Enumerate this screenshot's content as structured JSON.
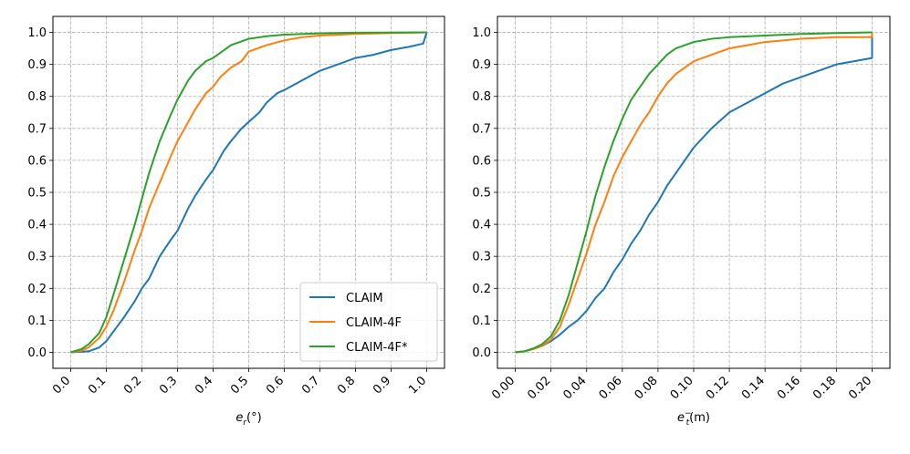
{
  "chart_data": [
    {
      "type": "line",
      "xlabel_base": "e",
      "xlabel_sub": "r",
      "xlabel_rest": "(°)",
      "xlim": [
        0.0,
        1.0
      ],
      "ylim": [
        0.0,
        1.0
      ],
      "grid": true,
      "grid_style": "dashed",
      "x_ticks": [
        "0.0",
        "0.1",
        "0.2",
        "0.3",
        "0.4",
        "0.5",
        "0.6",
        "0.7",
        "0.8",
        "0.9",
        "1.0"
      ],
      "y_ticks": [
        "0.0",
        "0.1",
        "0.2",
        "0.3",
        "0.4",
        "0.5",
        "0.6",
        "0.7",
        "0.8",
        "0.9",
        "1.0"
      ],
      "legend": {
        "placement": "lower-right",
        "entries": [
          "CLAIM",
          "CLAIM-4F",
          "CLAIM-4F*"
        ]
      },
      "series": [
        {
          "name": "CLAIM",
          "color": "#1f77b4",
          "x": [
            0,
            0.05,
            0.08,
            0.1,
            0.12,
            0.15,
            0.18,
            0.2,
            0.22,
            0.25,
            0.28,
            0.3,
            0.33,
            0.35,
            0.38,
            0.4,
            0.43,
            0.45,
            0.48,
            0.5,
            0.53,
            0.55,
            0.58,
            0.6,
            0.65,
            0.7,
            0.75,
            0.8,
            0.85,
            0.9,
            0.95,
            0.99,
            1.0
          ],
          "y": [
            0,
            0.003,
            0.015,
            0.035,
            0.065,
            0.11,
            0.16,
            0.2,
            0.23,
            0.3,
            0.35,
            0.38,
            0.45,
            0.49,
            0.54,
            0.57,
            0.63,
            0.66,
            0.7,
            0.72,
            0.75,
            0.78,
            0.81,
            0.82,
            0.85,
            0.88,
            0.9,
            0.92,
            0.93,
            0.945,
            0.955,
            0.965,
            1.0
          ]
        },
        {
          "name": "CLAIM-4F",
          "color": "#ff7f0e",
          "x": [
            0,
            0.03,
            0.05,
            0.08,
            0.1,
            0.12,
            0.15,
            0.18,
            0.2,
            0.22,
            0.25,
            0.28,
            0.3,
            0.33,
            0.35,
            0.38,
            0.4,
            0.42,
            0.45,
            0.48,
            0.5,
            0.55,
            0.6,
            0.65,
            0.7,
            0.8,
            0.9,
            1.0
          ],
          "y": [
            0,
            0.005,
            0.015,
            0.045,
            0.08,
            0.13,
            0.22,
            0.32,
            0.38,
            0.45,
            0.53,
            0.61,
            0.66,
            0.72,
            0.76,
            0.81,
            0.83,
            0.86,
            0.89,
            0.91,
            0.94,
            0.96,
            0.975,
            0.985,
            0.99,
            0.995,
            0.998,
            1.0
          ]
        },
        {
          "name": "CLAIM-4F*",
          "color": "#2ca02c",
          "x": [
            0,
            0.03,
            0.05,
            0.08,
            0.1,
            0.12,
            0.15,
            0.18,
            0.2,
            0.22,
            0.25,
            0.28,
            0.3,
            0.33,
            0.35,
            0.38,
            0.4,
            0.45,
            0.5,
            0.55,
            0.6,
            0.7,
            0.8,
            1.0
          ],
          "y": [
            0,
            0.01,
            0.025,
            0.06,
            0.11,
            0.18,
            0.29,
            0.4,
            0.48,
            0.56,
            0.66,
            0.74,
            0.79,
            0.85,
            0.88,
            0.91,
            0.92,
            0.96,
            0.98,
            0.988,
            0.993,
            0.997,
            0.999,
            1.0
          ]
        }
      ]
    },
    {
      "type": "line",
      "xlabel_base": "e",
      "xlabel_sub": "t",
      "xlabel_sup": "−",
      "xlabel_rest": "(m)",
      "xlim": [
        0.0,
        0.2
      ],
      "ylim": [
        0.0,
        1.0
      ],
      "grid": true,
      "grid_style": "dashed",
      "x_ticks": [
        "0.00",
        "0.02",
        "0.04",
        "0.06",
        "0.08",
        "0.10",
        "0.12",
        "0.14",
        "0.16",
        "0.18",
        "0.20"
      ],
      "y_ticks": [
        "0.0",
        "0.1",
        "0.2",
        "0.3",
        "0.4",
        "0.5",
        "0.6",
        "0.7",
        "0.8",
        "0.9",
        "1.0"
      ],
      "series": [
        {
          "name": "CLAIM",
          "color": "#1f77b4",
          "x": [
            0,
            0.005,
            0.01,
            0.015,
            0.02,
            0.025,
            0.03,
            0.035,
            0.04,
            0.045,
            0.05,
            0.055,
            0.06,
            0.065,
            0.07,
            0.075,
            0.08,
            0.085,
            0.09,
            0.095,
            0.1,
            0.11,
            0.12,
            0.13,
            0.14,
            0.15,
            0.16,
            0.17,
            0.18,
            0.19,
            0.2,
            0.2
          ],
          "y": [
            0,
            0.003,
            0.01,
            0.02,
            0.035,
            0.055,
            0.08,
            0.1,
            0.13,
            0.17,
            0.2,
            0.25,
            0.29,
            0.34,
            0.38,
            0.43,
            0.47,
            0.52,
            0.56,
            0.6,
            0.64,
            0.7,
            0.75,
            0.78,
            0.81,
            0.84,
            0.86,
            0.88,
            0.9,
            0.91,
            0.92,
            1.0
          ]
        },
        {
          "name": "CLAIM-4F",
          "color": "#ff7f0e",
          "x": [
            0,
            0.005,
            0.01,
            0.015,
            0.02,
            0.025,
            0.03,
            0.035,
            0.04,
            0.045,
            0.05,
            0.055,
            0.06,
            0.065,
            0.07,
            0.075,
            0.08,
            0.085,
            0.09,
            0.1,
            0.11,
            0.12,
            0.13,
            0.14,
            0.15,
            0.16,
            0.18,
            0.2,
            0.2
          ],
          "y": [
            0,
            0.003,
            0.01,
            0.02,
            0.04,
            0.08,
            0.15,
            0.23,
            0.31,
            0.4,
            0.47,
            0.55,
            0.61,
            0.66,
            0.71,
            0.75,
            0.8,
            0.84,
            0.87,
            0.91,
            0.93,
            0.95,
            0.96,
            0.97,
            0.975,
            0.98,
            0.985,
            0.985,
            1.0
          ]
        },
        {
          "name": "CLAIM-4F*",
          "color": "#2ca02c",
          "x": [
            0,
            0.005,
            0.01,
            0.015,
            0.02,
            0.025,
            0.03,
            0.035,
            0.04,
            0.045,
            0.05,
            0.055,
            0.06,
            0.065,
            0.07,
            0.075,
            0.08,
            0.085,
            0.09,
            0.095,
            0.1,
            0.11,
            0.12,
            0.14,
            0.16,
            0.18,
            0.2,
            0.2
          ],
          "y": [
            0,
            0.003,
            0.012,
            0.025,
            0.05,
            0.1,
            0.18,
            0.28,
            0.38,
            0.49,
            0.58,
            0.66,
            0.73,
            0.79,
            0.83,
            0.87,
            0.9,
            0.93,
            0.95,
            0.96,
            0.97,
            0.98,
            0.985,
            0.99,
            0.995,
            0.998,
            1.0,
            1.0
          ]
        }
      ]
    }
  ]
}
